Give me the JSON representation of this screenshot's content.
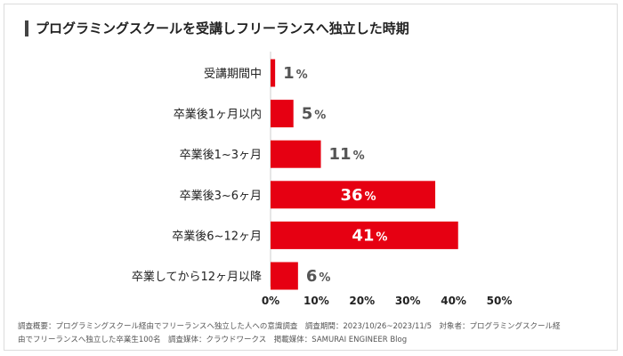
{
  "chart_data": {
    "type": "bar",
    "orientation": "horizontal",
    "title": "プログラミングスクールを受講しフリーランスへ独立した時期",
    "categories": [
      "受講期間中",
      "卒業後1ヶ月以内",
      "卒業後1~3ヶ月",
      "卒業後3~6ヶ月",
      "卒業後6~12ヶ月",
      "卒業してから12ヶ月以降"
    ],
    "values": [
      1,
      5,
      11,
      36,
      41,
      6
    ],
    "value_suffix": "%",
    "xlim": [
      0,
      50
    ],
    "xticks": [
      0,
      10,
      20,
      30,
      40,
      50
    ],
    "xtick_labels": [
      "0%",
      "10%",
      "20%",
      "30%",
      "40%",
      "50%"
    ],
    "bar_color": "#e60012",
    "label_color_outside": "#555555",
    "label_color_inside": "#ffffff"
  },
  "footnote": {
    "line1": "調査概要：プログラミングスクール経由でフリーランスへ独立した人への意識調査　調査期間：2023/10/26~2023/11/5　対象者：プログラミングスクール経",
    "line2": "由でフリーランスへ独立した卒業生100名　調査媒体：クラウドワークス　掲載媒体：SAMURAI ENGINEER Blog"
  }
}
